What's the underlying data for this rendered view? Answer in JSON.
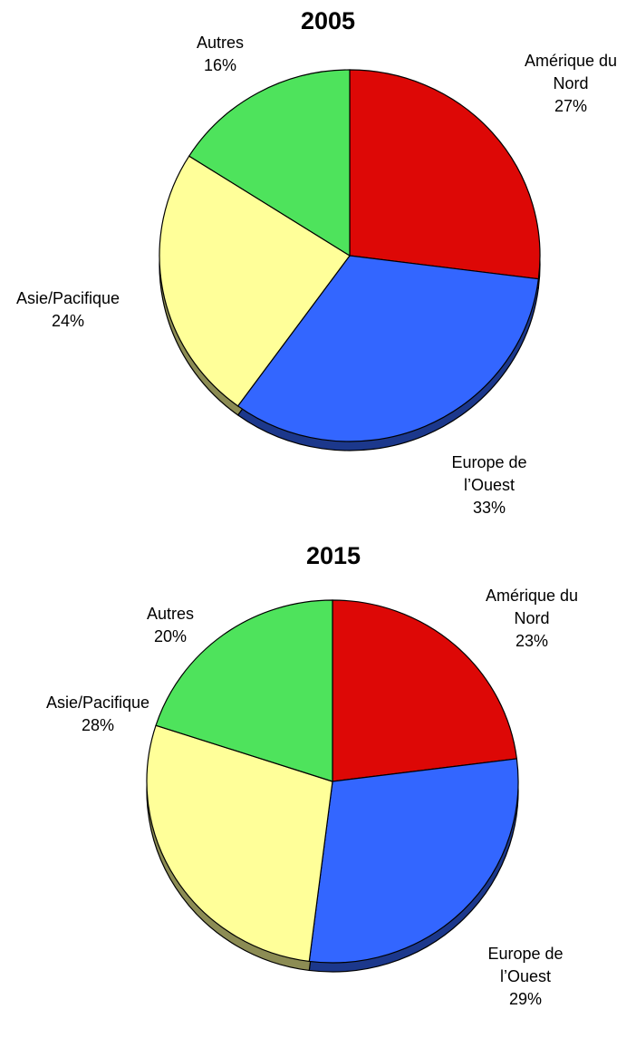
{
  "chart_data": [
    {
      "type": "pie",
      "title": "2005",
      "categories": [
        "Amérique du Nord",
        "Europe de l’Ouest",
        "Asie/Pacifique",
        "Autres"
      ],
      "values": [
        27,
        33,
        24,
        16
      ],
      "value_labels": [
        "27%",
        "33%",
        "24%",
        "16%"
      ],
      "colors": [
        "#dd0806",
        "#3366ff",
        "#ffff99",
        "#4ee35c"
      ]
    },
    {
      "type": "pie",
      "title": "2015",
      "categories": [
        "Amérique du Nord",
        "Europe de l’Ouest",
        "Asie/Pacifique",
        "Autres"
      ],
      "values": [
        23,
        29,
        28,
        20
      ],
      "value_labels": [
        "23%",
        "29%",
        "28%",
        "20%"
      ],
      "colors": [
        "#dd0806",
        "#3366ff",
        "#ffff99",
        "#4ee35c"
      ]
    }
  ]
}
